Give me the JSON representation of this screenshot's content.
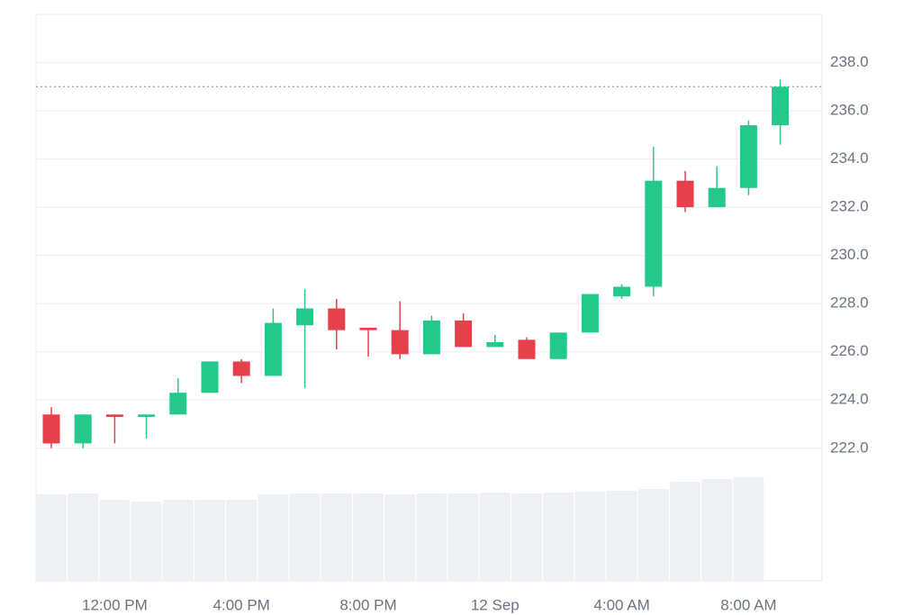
{
  "chart_data": {
    "type": "candlestick",
    "categories": [
      null,
      null,
      "12:00 PM",
      null,
      null,
      null,
      "4:00 PM",
      null,
      null,
      null,
      "8:00 PM",
      null,
      null,
      null,
      "12 Sep",
      null,
      null,
      null,
      "4:00 AM",
      null,
      null,
      null,
      "8:00 AM",
      null
    ],
    "open": [
      223.4,
      222.2,
      223.4,
      223.3,
      223.4,
      224.3,
      225.6,
      225.0,
      227.1,
      227.8,
      227.0,
      226.9,
      225.9,
      227.3,
      226.2,
      226.5,
      225.7,
      226.8,
      228.3,
      228.7,
      233.1,
      232.0,
      232.8,
      235.4
    ],
    "high": [
      223.7,
      223.4,
      223.4,
      223.4,
      224.9,
      225.6,
      225.7,
      227.8,
      228.6,
      228.2,
      227.0,
      228.1,
      227.5,
      227.6,
      226.7,
      226.6,
      226.8,
      228.4,
      228.8,
      234.5,
      233.5,
      233.7,
      235.6,
      237.3
    ],
    "low": [
      222.0,
      222.0,
      222.2,
      222.4,
      223.4,
      224.3,
      224.7,
      225.0,
      224.5,
      226.1,
      225.8,
      225.7,
      225.9,
      226.2,
      226.2,
      225.7,
      225.7,
      226.8,
      228.2,
      228.3,
      231.8,
      232.0,
      232.5,
      234.6
    ],
    "close": [
      222.2,
      223.4,
      223.3,
      223.4,
      224.3,
      225.6,
      225.0,
      227.2,
      227.8,
      226.9,
      226.9,
      225.9,
      227.3,
      226.2,
      226.4,
      225.7,
      226.8,
      228.4,
      228.7,
      233.1,
      232.0,
      232.8,
      235.4,
      237.0
    ],
    "volume": [
      96,
      97,
      90,
      88,
      90,
      90,
      90,
      96,
      97,
      97,
      97,
      96,
      97,
      97,
      98,
      97,
      98,
      99,
      100,
      102,
      110,
      113,
      115,
      null
    ],
    "volume_ylim": [
      0,
      120
    ],
    "last_price": 237.0,
    "up_color": "#22c98a",
    "down_color": "#e5414d",
    "volume_color": "#eef0f3",
    "ylim": [
      216.5,
      240.0
    ],
    "yticks": [
      {
        "value": 222,
        "label": "222.0"
      },
      {
        "value": 224,
        "label": "224.0"
      },
      {
        "value": 226,
        "label": "226.0"
      },
      {
        "value": 228,
        "label": "228.0"
      },
      {
        "value": 230,
        "label": "230.0"
      },
      {
        "value": 232,
        "label": "232.0"
      },
      {
        "value": 234,
        "label": "234.0"
      },
      {
        "value": 236,
        "label": "236.0"
      },
      {
        "value": 238,
        "label": "238.0"
      }
    ],
    "grid": true
  }
}
